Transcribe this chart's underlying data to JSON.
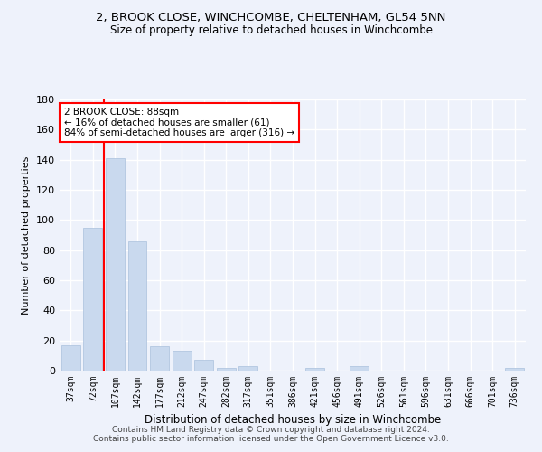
{
  "title": "2, BROOK CLOSE, WINCHCOMBE, CHELTENHAM, GL54 5NN",
  "subtitle": "Size of property relative to detached houses in Winchcombe",
  "xlabel": "Distribution of detached houses by size in Winchcombe",
  "ylabel": "Number of detached properties",
  "categories": [
    "37sqm",
    "72sqm",
    "107sqm",
    "142sqm",
    "177sqm",
    "212sqm",
    "247sqm",
    "282sqm",
    "317sqm",
    "351sqm",
    "386sqm",
    "421sqm",
    "456sqm",
    "491sqm",
    "526sqm",
    "561sqm",
    "596sqm",
    "631sqm",
    "666sqm",
    "701sqm",
    "736sqm"
  ],
  "values": [
    17,
    95,
    141,
    86,
    16,
    13,
    7,
    2,
    3,
    0,
    0,
    2,
    0,
    3,
    0,
    0,
    0,
    0,
    0,
    0,
    2
  ],
  "bar_color": "#c9d9ee",
  "bar_edge_color": "#aac0dc",
  "red_line_x": 1.5,
  "annotation_text": "2 BROOK CLOSE: 88sqm\n← 16% of detached houses are smaller (61)\n84% of semi-detached houses are larger (316) →",
  "annotation_box_color": "white",
  "annotation_box_edge": "red",
  "ylim": [
    0,
    180
  ],
  "yticks": [
    0,
    20,
    40,
    60,
    80,
    100,
    120,
    140,
    160,
    180
  ],
  "background_color": "#eef2fb",
  "grid_color": "white",
  "footnote": "Contains HM Land Registry data © Crown copyright and database right 2024.\nContains public sector information licensed under the Open Government Licence v3.0."
}
